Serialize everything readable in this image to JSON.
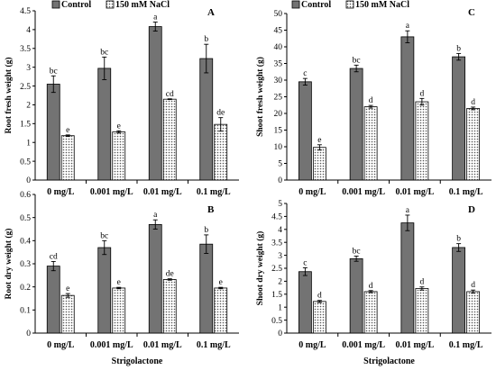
{
  "legend": {
    "control": "Control",
    "nacl": "150 mM NaCl"
  },
  "colors": {
    "control": "#737373",
    "nacl_dots": "#555555",
    "axis": "#000000"
  },
  "x_title": "Strigolactone",
  "chart_data": [
    {
      "type": "bar",
      "panel_label": "A",
      "ylabel": "Root fresh weight (g)",
      "ylim": [
        0,
        4.5
      ],
      "yticks": [
        "0",
        "0.5",
        "1",
        "1.5",
        "2",
        "2.5",
        "3",
        "3.5",
        "4",
        "4.5"
      ],
      "categories": [
        "0 mg/L",
        "0.001 mg/L",
        "0.01 mg/L",
        "0.1 mg/L"
      ],
      "xlabel": "",
      "show_legend": true,
      "series": [
        {
          "name": "Control",
          "values": [
            2.55,
            2.97,
            4.08,
            3.23
          ],
          "errors": [
            0.22,
            0.3,
            0.12,
            0.38
          ],
          "letters": [
            "bc",
            "bc",
            "a",
            "b"
          ]
        },
        {
          "name": "150 mM NaCl",
          "values": [
            1.18,
            1.28,
            2.15,
            1.48
          ],
          "errors": [
            0.02,
            0.03,
            0.01,
            0.18
          ],
          "letters": [
            "e",
            "e",
            "cd",
            "de"
          ]
        }
      ]
    },
    {
      "type": "bar",
      "panel_label": "B",
      "ylabel": "Root dry weight (g)",
      "ylim": [
        0,
        0.6
      ],
      "yticks": [
        "0",
        "0.1",
        "0.2",
        "0.3",
        "0.4",
        "0.5",
        "0.6"
      ],
      "categories": [
        "0 mg/L",
        "0.001 mg/L",
        "0.01 mg/L",
        "0.1 mg/L"
      ],
      "xlabel": "Strigolactone",
      "show_legend": false,
      "series": [
        {
          "name": "Control",
          "values": [
            0.29,
            0.37,
            0.47,
            0.385
          ],
          "errors": [
            0.02,
            0.03,
            0.02,
            0.04
          ],
          "letters": [
            "cd",
            "bc",
            "a",
            "b"
          ]
        },
        {
          "name": "150 mM NaCl",
          "values": [
            0.163,
            0.195,
            0.232,
            0.195
          ],
          "errors": [
            0.008,
            0.003,
            0.003,
            0.003
          ],
          "letters": [
            "e",
            "e",
            "de",
            "e"
          ]
        }
      ]
    },
    {
      "type": "bar",
      "panel_label": "C",
      "ylabel": "Shoot fresh weight (g)",
      "ylim": [
        0,
        50
      ],
      "yticks": [
        "0",
        "5",
        "10",
        "15",
        "20",
        "25",
        "30",
        "35",
        "40",
        "45",
        "50"
      ],
      "categories": [
        "0 mg/L",
        "0.001 mg/L",
        "0.01 mg/L",
        "0.1 mg/L"
      ],
      "xlabel": "",
      "show_legend": true,
      "series": [
        {
          "name": "Control",
          "values": [
            29.5,
            33.5,
            43,
            37
          ],
          "errors": [
            1,
            1,
            1.8,
            1
          ],
          "letters": [
            "c",
            "bc",
            "a",
            "b"
          ]
        },
        {
          "name": "150 mM NaCl",
          "values": [
            9.8,
            22,
            23.5,
            21.5
          ],
          "errors": [
            0.8,
            0.4,
            1,
            0.4
          ],
          "letters": [
            "e",
            "d",
            "d",
            "d"
          ]
        }
      ]
    },
    {
      "type": "bar",
      "panel_label": "D",
      "ylabel": "Shoot dry weight (g)",
      "ylim": [
        0,
        5
      ],
      "yticks": [
        "0",
        "0.5",
        "1",
        "1.5",
        "2",
        "2.5",
        "3",
        "3.5",
        "4",
        "4.5",
        "5"
      ],
      "categories": [
        "0 mg/L",
        "0.001 mg/L",
        "0.01 mg/L",
        "0.1 mg/L"
      ],
      "xlabel": "Strigolactone",
      "show_legend": false,
      "series": [
        {
          "name": "Control",
          "values": [
            2.37,
            2.87,
            4.25,
            3.3
          ],
          "errors": [
            0.15,
            0.1,
            0.3,
            0.15
          ],
          "letters": [
            "c",
            "bc",
            "a",
            "b"
          ]
        },
        {
          "name": "150 mM NaCl",
          "values": [
            1.22,
            1.6,
            1.72,
            1.6
          ],
          "errors": [
            0.04,
            0.04,
            0.06,
            0.06
          ],
          "letters": [
            "d",
            "d",
            "d",
            "d"
          ]
        }
      ]
    }
  ]
}
